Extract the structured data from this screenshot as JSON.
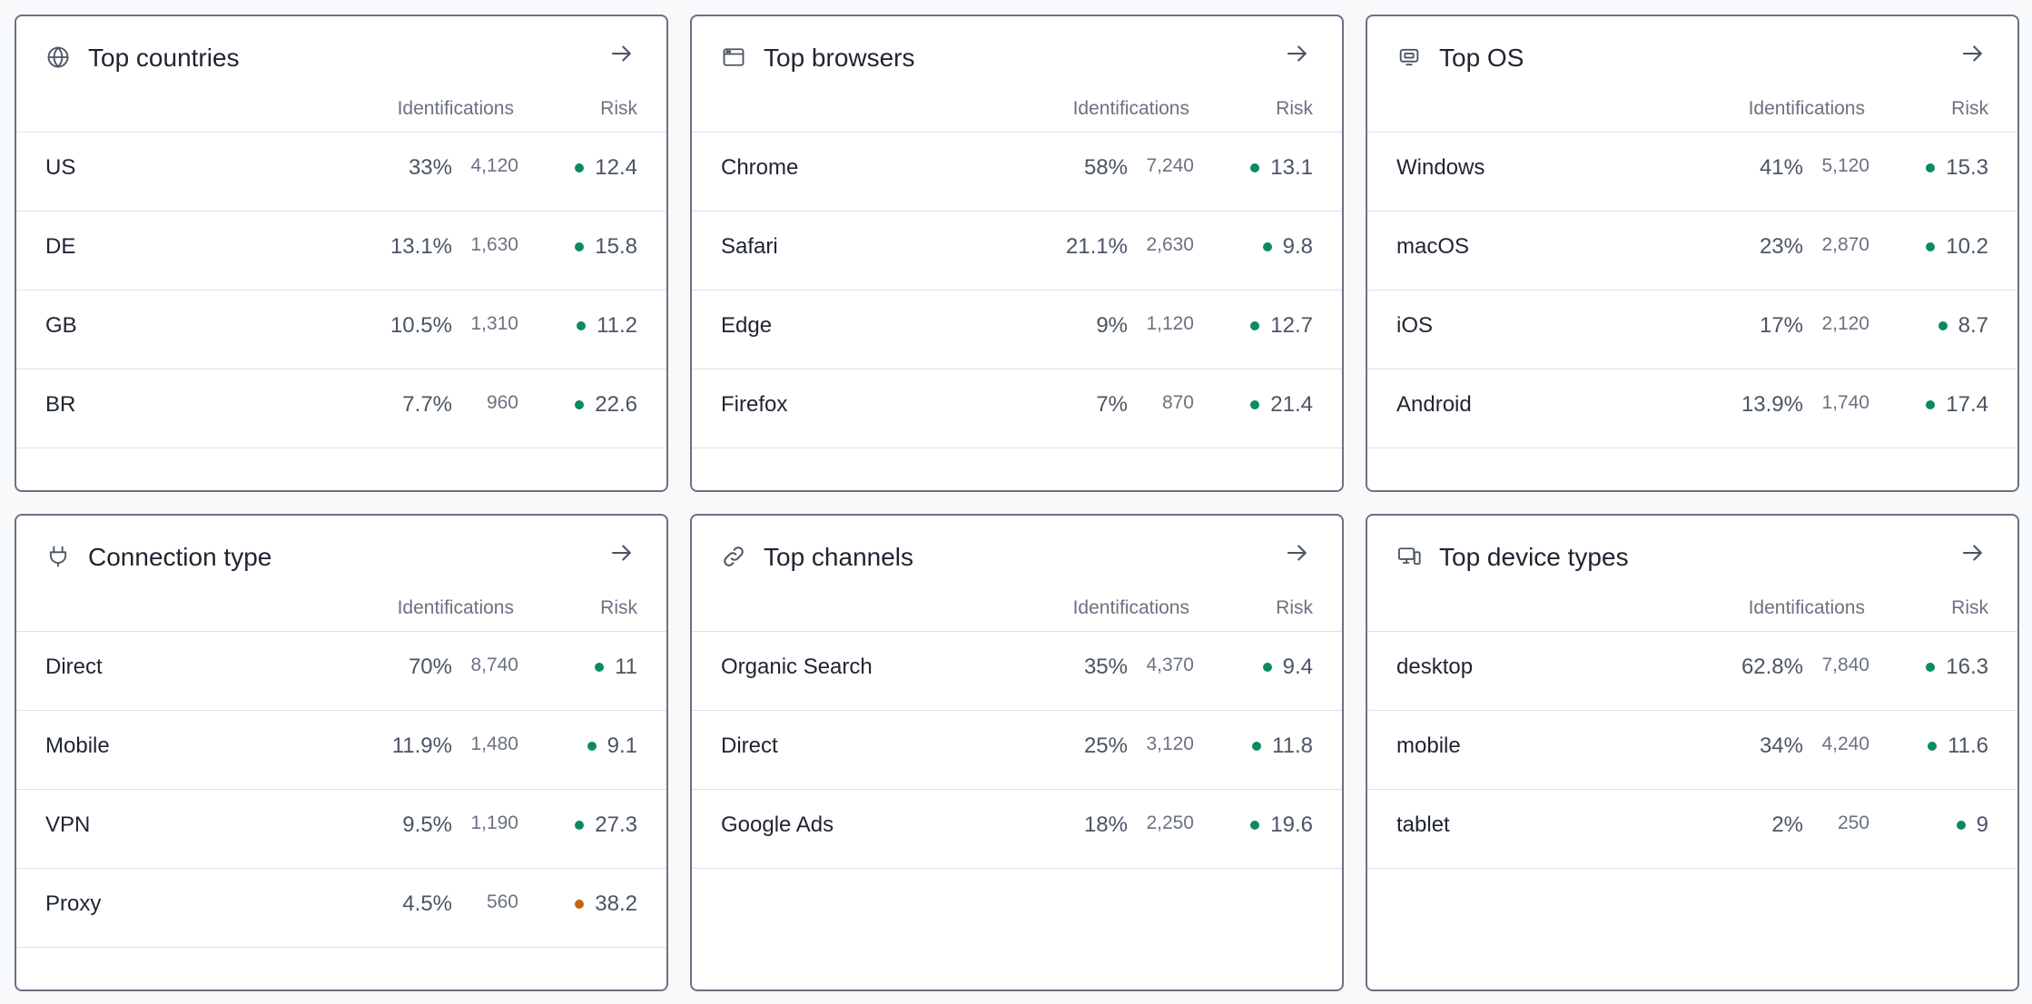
{
  "colors": {
    "risk_low": "#0e8a5f",
    "risk_high": "#c2670e"
  },
  "cards": [
    {
      "title": "Top countries",
      "icon": "globe-icon",
      "col_identifications": "Identifications",
      "col_risk": "Risk",
      "rows": [
        {
          "label": "US",
          "pct": "33%",
          "count": "4,120",
          "risk": "12.4",
          "level": "low"
        },
        {
          "label": "DE",
          "pct": "13.1%",
          "count": "1,630",
          "risk": "15.8",
          "level": "low"
        },
        {
          "label": "GB",
          "pct": "10.5%",
          "count": "1,310",
          "risk": "11.2",
          "level": "low"
        },
        {
          "label": "BR",
          "pct": "7.7%",
          "count": "960",
          "risk": "22.6",
          "level": "low"
        }
      ]
    },
    {
      "title": "Top browsers",
      "icon": "browser-window-icon",
      "col_identifications": "Identifications",
      "col_risk": "Risk",
      "rows": [
        {
          "label": "Chrome",
          "pct": "58%",
          "count": "7,240",
          "risk": "13.1",
          "level": "low"
        },
        {
          "label": "Safari",
          "pct": "21.1%",
          "count": "2,630",
          "risk": "9.8",
          "level": "low"
        },
        {
          "label": "Edge",
          "pct": "9%",
          "count": "1,120",
          "risk": "12.7",
          "level": "low"
        },
        {
          "label": "Firefox",
          "pct": "7%",
          "count": "870",
          "risk": "21.4",
          "level": "low"
        }
      ]
    },
    {
      "title": "Top OS",
      "icon": "cpu-chip-icon",
      "col_identifications": "Identifications",
      "col_risk": "Risk",
      "rows": [
        {
          "label": "Windows",
          "pct": "41%",
          "count": "5,120",
          "risk": "15.3",
          "level": "low"
        },
        {
          "label": "macOS",
          "pct": "23%",
          "count": "2,870",
          "risk": "10.2",
          "level": "low"
        },
        {
          "label": "iOS",
          "pct": "17%",
          "count": "2,120",
          "risk": "8.7",
          "level": "low"
        },
        {
          "label": "Android",
          "pct": "13.9%",
          "count": "1,740",
          "risk": "17.4",
          "level": "low"
        }
      ]
    },
    {
      "title": "Connection type",
      "icon": "plug-icon",
      "col_identifications": "Identifications",
      "col_risk": "Risk",
      "rows": [
        {
          "label": "Direct",
          "pct": "70%",
          "count": "8,740",
          "risk": "11",
          "level": "low"
        },
        {
          "label": "Mobile",
          "pct": "11.9%",
          "count": "1,480",
          "risk": "9.1",
          "level": "low"
        },
        {
          "label": "VPN",
          "pct": "9.5%",
          "count": "1,190",
          "risk": "27.3",
          "level": "low"
        },
        {
          "label": "Proxy",
          "pct": "4.5%",
          "count": "560",
          "risk": "38.2",
          "level": "high"
        }
      ]
    },
    {
      "title": "Top channels",
      "icon": "link-icon",
      "col_identifications": "Identifications",
      "col_risk": "Risk",
      "rows": [
        {
          "label": "Organic Search",
          "pct": "35%",
          "count": "4,370",
          "risk": "9.4",
          "level": "low"
        },
        {
          "label": "Direct",
          "pct": "25%",
          "count": "3,120",
          "risk": "11.8",
          "level": "low"
        },
        {
          "label": "Google Ads",
          "pct": "18%",
          "count": "2,250",
          "risk": "19.6",
          "level": "low"
        }
      ]
    },
    {
      "title": "Top device types",
      "icon": "devices-icon",
      "col_identifications": "Identifications",
      "col_risk": "Risk",
      "rows": [
        {
          "label": "desktop",
          "pct": "62.8%",
          "count": "7,840",
          "risk": "16.3",
          "level": "low"
        },
        {
          "label": "mobile",
          "pct": "34%",
          "count": "4,240",
          "risk": "11.6",
          "level": "low"
        },
        {
          "label": "tablet",
          "pct": "2%",
          "count": "250",
          "risk": "9",
          "level": "low"
        }
      ]
    }
  ]
}
